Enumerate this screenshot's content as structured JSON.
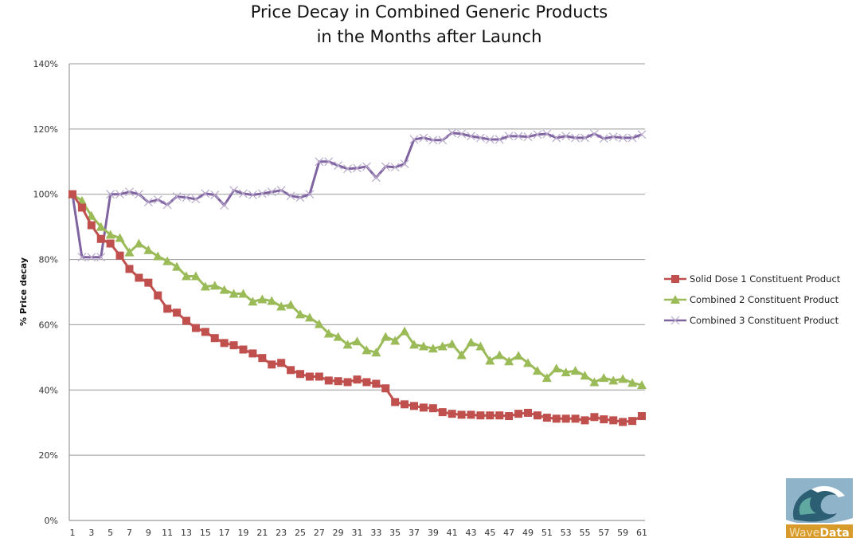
{
  "chart_data": {
    "type": "line",
    "title": "Price Decay in Combined Generic Products in the Months after Launch",
    "title_lines": [
      "Price Decay in Combined Generic Products",
      "in the Months after Launch"
    ],
    "xlabel": "",
    "ylabel": "% Price decay",
    "ylim": [
      0,
      140
    ],
    "yticks": [
      0,
      20,
      40,
      60,
      80,
      100,
      120,
      140
    ],
    "ytick_labels": [
      "0%",
      "20%",
      "40%",
      "60%",
      "80%",
      "100%",
      "120%",
      "140%"
    ],
    "x": [
      1,
      2,
      3,
      4,
      5,
      6,
      7,
      8,
      9,
      10,
      11,
      12,
      13,
      14,
      15,
      16,
      17,
      18,
      19,
      20,
      21,
      22,
      23,
      24,
      25,
      26,
      27,
      28,
      29,
      30,
      31,
      32,
      33,
      34,
      35,
      36,
      37,
      38,
      39,
      40,
      41,
      42,
      43,
      44,
      45,
      46,
      47,
      48,
      49,
      50,
      51,
      52,
      53,
      54,
      55,
      56,
      57,
      58,
      59,
      60,
      61
    ],
    "xtick_labels": [
      "1",
      "3",
      "5",
      "7",
      "9",
      "11",
      "13",
      "15",
      "17",
      "19",
      "21",
      "23",
      "25",
      "27",
      "29",
      "31",
      "33",
      "35",
      "37",
      "39",
      "41",
      "43",
      "45",
      "47",
      "49",
      "51",
      "53",
      "55",
      "57",
      "59",
      "61"
    ],
    "grid": "horizontal",
    "legend_position": "right",
    "series": [
      {
        "name": "Solid Dose 1 Constituent Product",
        "color": "#c0504d",
        "marker": "square",
        "values": [
          100,
          95.9,
          90.5,
          86.3,
          84.9,
          81.2,
          77.1,
          74.4,
          72.9,
          69,
          64.9,
          63.7,
          61.2,
          59,
          57.8,
          55.9,
          54.4,
          53.7,
          52.4,
          51.2,
          49.8,
          47.8,
          48.3,
          46.1,
          44.9,
          44.1,
          44.1,
          42.9,
          42.7,
          42.4,
          43.2,
          42.4,
          41.9,
          40.5,
          36.3,
          35.6,
          35.1,
          34.6,
          34.4,
          33.2,
          32.7,
          32.4,
          32.4,
          32.2,
          32.2,
          32.2,
          32,
          32.7,
          33,
          32.2,
          31.5,
          31.2,
          31.2,
          31.2,
          30.7,
          31.7,
          31,
          30.7,
          30.2,
          30.5,
          32
        ]
      },
      {
        "name": "Combined 2 Constituent Product",
        "color": "#9bbb59",
        "marker": "triangle",
        "values": [
          100,
          98,
          93.4,
          90,
          87.6,
          86.6,
          82.2,
          84.9,
          82.9,
          81,
          79.5,
          77.8,
          74.9,
          74.9,
          71.7,
          72,
          70.7,
          69.5,
          69.5,
          67.1,
          67.8,
          67.3,
          65.6,
          66.1,
          63.2,
          62.2,
          60.2,
          57.3,
          56.3,
          53.9,
          54.9,
          52.2,
          51.5,
          56.3,
          55.1,
          58,
          53.9,
          53.4,
          52.7,
          53.4,
          54.1,
          50.7,
          54.6,
          53.4,
          49,
          50.7,
          48.8,
          50.5,
          48.3,
          45.9,
          43.7,
          46.6,
          45.4,
          45.9,
          44.4,
          42.4,
          43.7,
          42.9,
          43.4,
          42.2,
          41.5
        ]
      },
      {
        "name": "Combined 3 Constituent Product",
        "color": "#8064a2",
        "marker": "x",
        "values": [
          100,
          80.7,
          80.7,
          80.7,
          100,
          100,
          100.7,
          100,
          97.6,
          98.3,
          96.8,
          99.3,
          99,
          98.5,
          100.2,
          99.8,
          96.6,
          101.2,
          100.2,
          99.8,
          100.2,
          100.7,
          101.2,
          99.5,
          99,
          100,
          110,
          110,
          108.8,
          107.8,
          108,
          108.5,
          105.1,
          108.5,
          108.3,
          109.3,
          116.8,
          117.3,
          116.6,
          116.6,
          118.8,
          118.5,
          117.8,
          117.3,
          116.8,
          116.8,
          117.8,
          117.8,
          117.6,
          118.3,
          118.5,
          117.3,
          117.8,
          117.3,
          117.3,
          118.5,
          117.1,
          117.6,
          117.3,
          117.3,
          118.3
        ]
      }
    ]
  },
  "logo": {
    "text_part1": "Wave",
    "text_part2": "Data",
    "colors": {
      "sky": "#8fb3c9",
      "band": "#d89a2a",
      "wave_dark": "#2c5f73",
      "wave_light": "#5fa9a0"
    }
  }
}
